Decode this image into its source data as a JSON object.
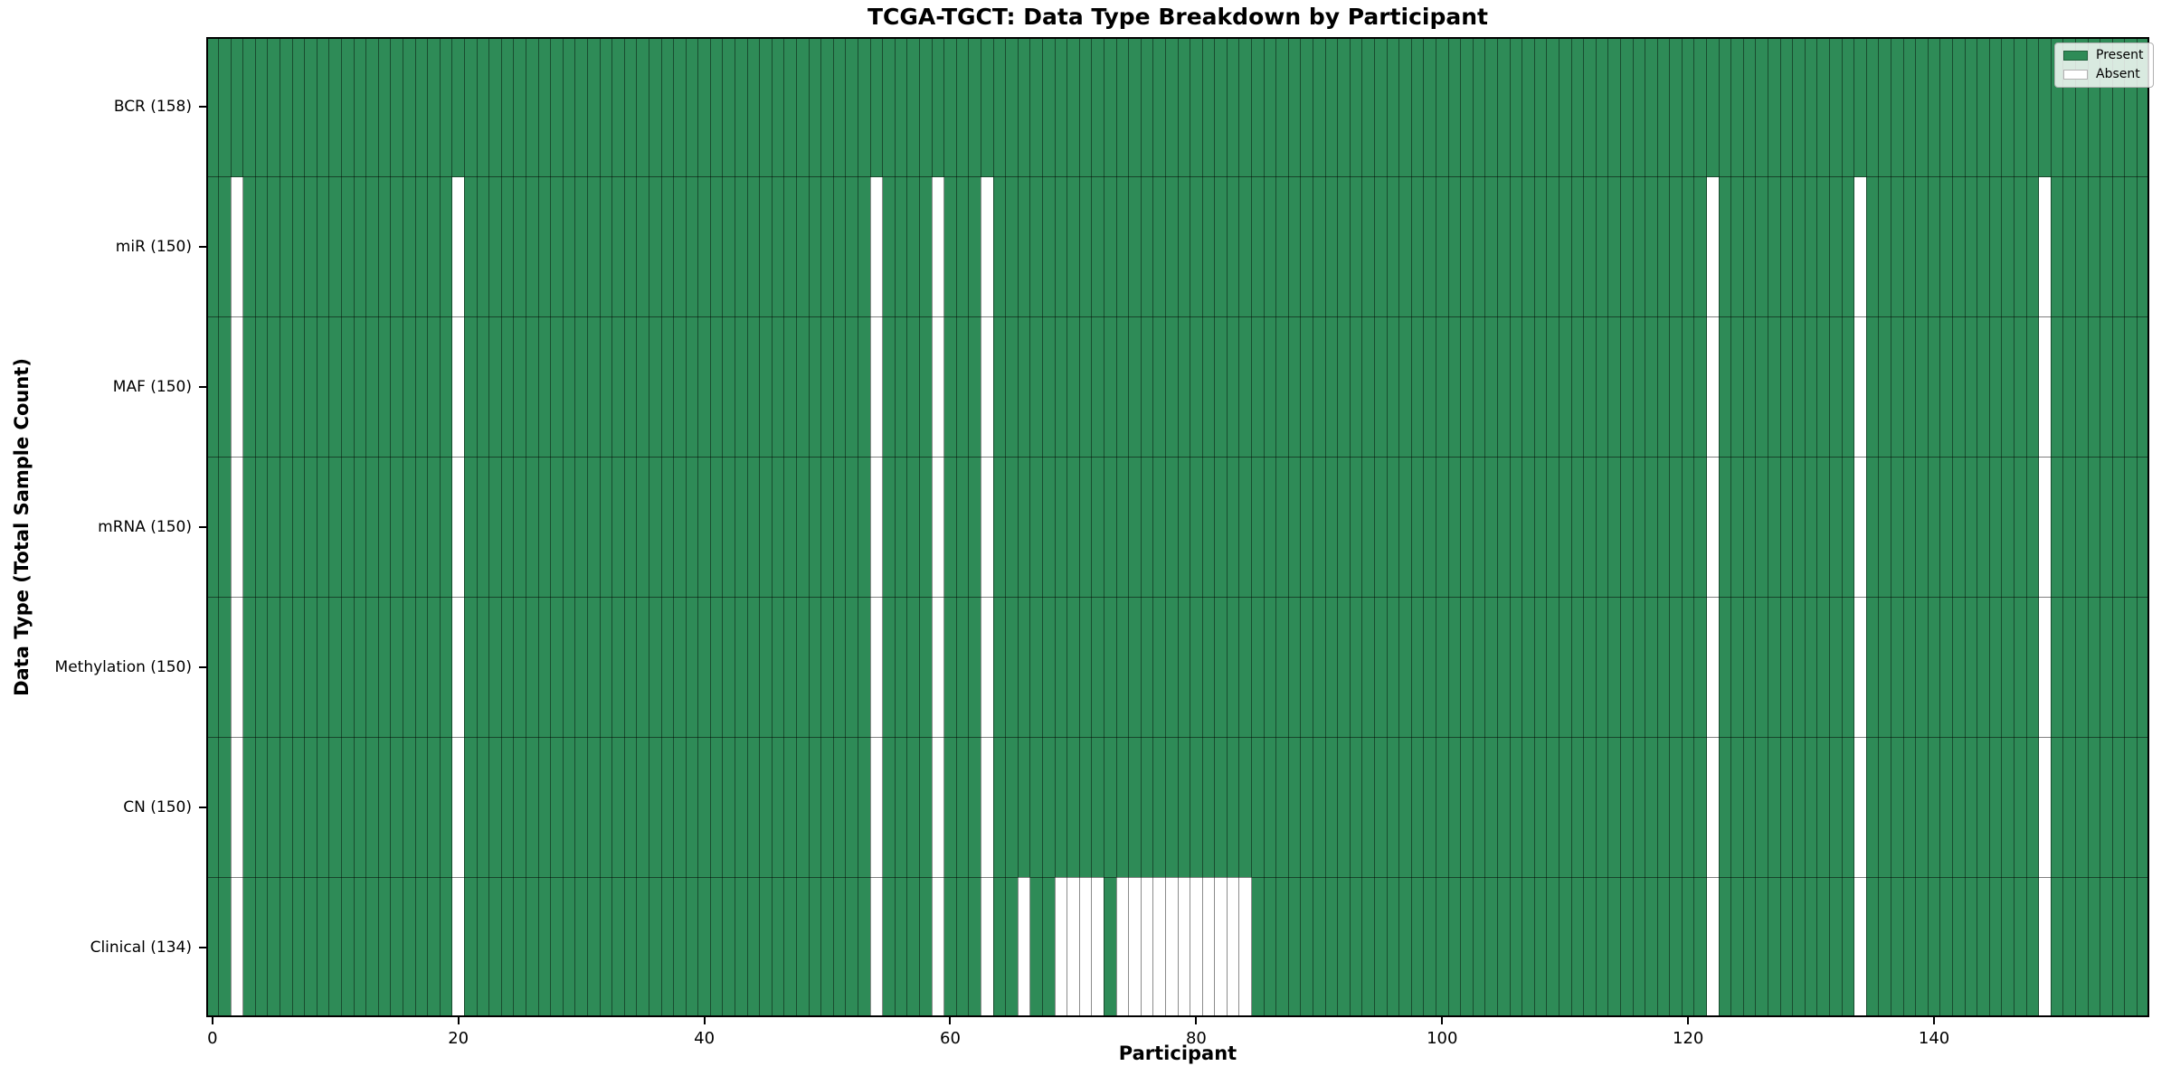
{
  "chart_data": {
    "type": "heatmap",
    "title": "TCGA-TGCT: Data Type Breakdown by Participant",
    "xlabel": "Participant",
    "ylabel": "Data Type (Total Sample Count)",
    "n_participants": 158,
    "x_ticks": [
      0,
      20,
      40,
      60,
      80,
      100,
      120,
      140
    ],
    "rows": [
      {
        "label": "BCR (158)",
        "data_type": "BCR",
        "present_count": 158,
        "absent_participants": []
      },
      {
        "label": "miR (150)",
        "data_type": "miR",
        "present_count": 150,
        "absent_participants": [
          2,
          20,
          54,
          59,
          63,
          122,
          134,
          149
        ]
      },
      {
        "label": "MAF (150)",
        "data_type": "MAF",
        "present_count": 150,
        "absent_participants": [
          2,
          20,
          54,
          59,
          63,
          122,
          134,
          149
        ]
      },
      {
        "label": "mRNA (150)",
        "data_type": "mRNA",
        "present_count": 150,
        "absent_participants": [
          2,
          20,
          54,
          59,
          63,
          122,
          134,
          149
        ]
      },
      {
        "label": "Methylation (150)",
        "data_type": "Methylation",
        "present_count": 150,
        "absent_participants": [
          2,
          20,
          54,
          59,
          63,
          122,
          134,
          149
        ]
      },
      {
        "label": "CN (150)",
        "data_type": "CN",
        "present_count": 150,
        "absent_participants": [
          2,
          20,
          54,
          59,
          63,
          122,
          134,
          149
        ]
      },
      {
        "label": "Clinical (134)",
        "data_type": "Clinical",
        "present_count": 134,
        "absent_participants": [
          2,
          20,
          54,
          59,
          63,
          66,
          69,
          70,
          71,
          72,
          74,
          75,
          76,
          77,
          78,
          79,
          80,
          81,
          82,
          83,
          84,
          122,
          134,
          149
        ]
      }
    ],
    "legend": [
      {
        "label": "Present",
        "color": "#2e8b57"
      },
      {
        "label": "Absent",
        "color": "#ffffff"
      }
    ],
    "colors": {
      "present": "#2e8b57",
      "absent": "#ffffff",
      "cell_edge": "rgba(0,0,0,0.45)",
      "row_divider": "rgba(0,0,0,0.5)",
      "spine": "#000000"
    },
    "legend_position": "upper right",
    "grid": "cell-edges"
  }
}
